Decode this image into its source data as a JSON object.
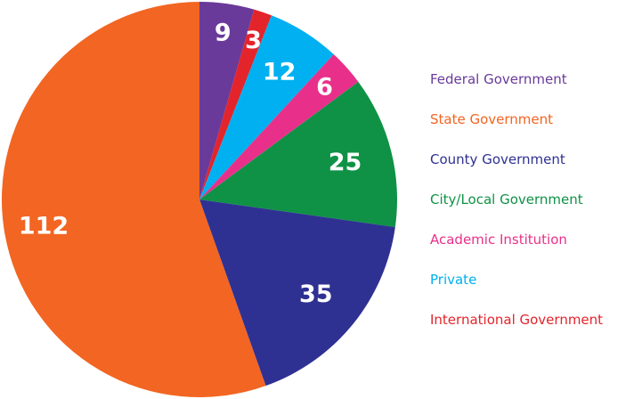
{
  "chart_data": {
    "type": "pie",
    "start": "12 o'clock",
    "direction": "clockwise",
    "legend_position": "right",
    "slices": [
      {
        "name": "Federal Government",
        "value": 9,
        "label": "9",
        "color": "#6a3a9a"
      },
      {
        "name": "International Government",
        "value": 3,
        "label": "3",
        "color": "#e3242b"
      },
      {
        "name": "Private",
        "value": 12,
        "label": "12",
        "color": "#00b0f0"
      },
      {
        "name": "Academic Institution",
        "value": 6,
        "label": "6",
        "color": "#e8308a"
      },
      {
        "name": "City/Local Government",
        "value": 25,
        "label": "25",
        "color": "#0f9246"
      },
      {
        "name": "County Government",
        "value": 35,
        "label": "35",
        "color": "#2e3192"
      },
      {
        "name": "State Government",
        "value": 112,
        "label": "112",
        "color": "#f26522"
      }
    ],
    "legend": [
      {
        "label": "Federal Government",
        "color": "#6a3a9a"
      },
      {
        "label": "State Government",
        "color": "#f26522"
      },
      {
        "label": "County Government",
        "color": "#2e3192"
      },
      {
        "label": "City/Local Government",
        "color": "#0f9246"
      },
      {
        "label": "Academic Institution",
        "color": "#e8308a"
      },
      {
        "label": "Private",
        "color": "#00b0f0"
      },
      {
        "label": "International Government",
        "color": "#e3242b"
      }
    ]
  }
}
